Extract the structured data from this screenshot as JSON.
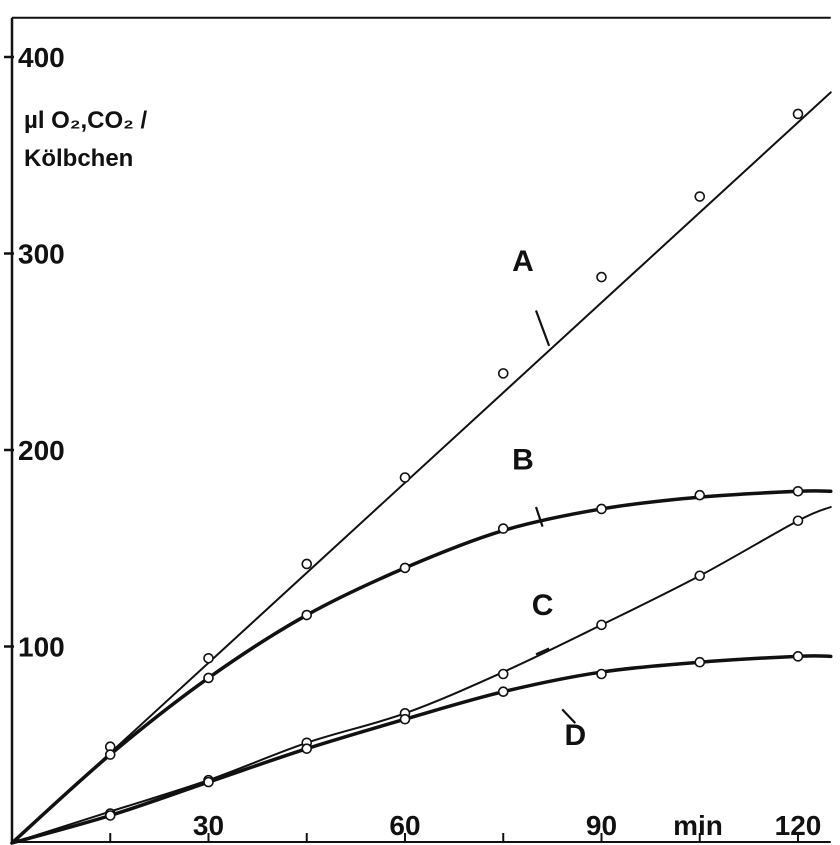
{
  "chart_data": {
    "type": "line",
    "ylabel_lines": [
      "µl O₂,CO₂ /",
      "Kölbchen"
    ],
    "x_unit": "min",
    "xlim": [
      0,
      125
    ],
    "ylim": [
      0,
      420
    ],
    "x_tick_labels": [
      {
        "value": 30,
        "label": "30"
      },
      {
        "value": 60,
        "label": "60"
      },
      {
        "value": 90,
        "label": "90"
      },
      {
        "value": 120,
        "label": "120"
      }
    ],
    "x_minor_ticks": [
      15,
      30,
      45,
      60,
      75,
      90,
      105,
      120
    ],
    "y_tick_labels": [
      {
        "value": 100,
        "label": "100"
      },
      {
        "value": 200,
        "label": "200"
      },
      {
        "value": 300,
        "label": "300"
      },
      {
        "value": 400,
        "label": "400"
      }
    ],
    "grid": false,
    "series": [
      {
        "name": "A",
        "curve": [
          [
            0,
            0
          ],
          [
            125,
            382
          ]
        ],
        "points": [
          [
            15,
            49
          ],
          [
            30,
            94
          ],
          [
            45,
            142
          ],
          [
            60,
            186
          ],
          [
            75,
            239
          ],
          [
            90,
            288
          ],
          [
            105,
            329
          ],
          [
            120,
            371
          ]
        ],
        "label_at": [
          78,
          291
        ],
        "leader": [
          [
            80,
            271
          ],
          [
            82,
            253
          ]
        ],
        "weight": "thin"
      },
      {
        "name": "B",
        "curve": [
          [
            0,
            0
          ],
          [
            15,
            45
          ],
          [
            30,
            84
          ],
          [
            45,
            116
          ],
          [
            60,
            140
          ],
          [
            75,
            159
          ],
          [
            90,
            170
          ],
          [
            105,
            176
          ],
          [
            120,
            179
          ],
          [
            125,
            179
          ]
        ],
        "points": [
          [
            15,
            45
          ],
          [
            30,
            84
          ],
          [
            45,
            116
          ],
          [
            60,
            140
          ],
          [
            75,
            160
          ],
          [
            90,
            170
          ],
          [
            105,
            177
          ],
          [
            120,
            179
          ]
        ],
        "label_at": [
          78,
          190
        ],
        "leader": [
          [
            80,
            171
          ],
          [
            81,
            161
          ]
        ],
        "weight": "bold"
      },
      {
        "name": "C",
        "curve": [
          [
            0,
            0
          ],
          [
            15,
            16
          ],
          [
            30,
            32
          ],
          [
            45,
            51
          ],
          [
            60,
            66
          ],
          [
            75,
            87
          ],
          [
            90,
            111
          ],
          [
            105,
            136
          ],
          [
            120,
            164
          ],
          [
            125,
            171
          ]
        ],
        "points": [
          [
            15,
            15
          ],
          [
            30,
            32
          ],
          [
            45,
            51
          ],
          [
            60,
            66
          ],
          [
            75,
            86
          ],
          [
            90,
            111
          ],
          [
            105,
            136
          ],
          [
            120,
            164
          ]
        ],
        "label_at": [
          81,
          116
        ],
        "leader": [
          [
            82,
            99
          ],
          [
            80,
            96
          ]
        ],
        "weight": "thin"
      },
      {
        "name": "D",
        "curve": [
          [
            0,
            0
          ],
          [
            15,
            14
          ],
          [
            30,
            31
          ],
          [
            45,
            48
          ],
          [
            60,
            63
          ],
          [
            75,
            77
          ],
          [
            90,
            87
          ],
          [
            105,
            92
          ],
          [
            120,
            95
          ],
          [
            125,
            95
          ]
        ],
        "points": [
          [
            15,
            14
          ],
          [
            30,
            31
          ],
          [
            45,
            48
          ],
          [
            60,
            63
          ],
          [
            75,
            77
          ],
          [
            90,
            86
          ],
          [
            105,
            92
          ],
          [
            120,
            95
          ]
        ],
        "label_at": [
          86,
          50
        ],
        "leader": [
          [
            86,
            61
          ],
          [
            84,
            68
          ]
        ],
        "weight": "bold"
      }
    ]
  }
}
